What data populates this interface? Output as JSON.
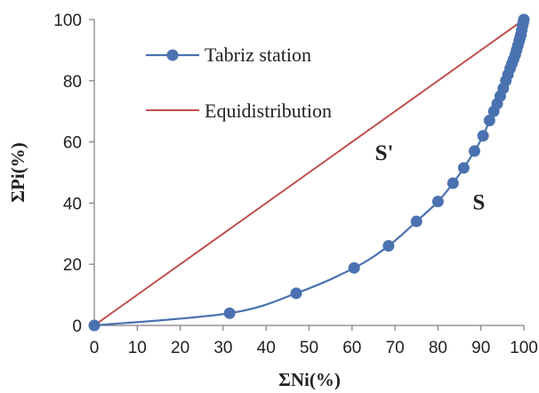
{
  "chart_data": {
    "type": "line",
    "title": "",
    "xlabel": "ΣNi(%)",
    "ylabel": "ΣPi(%)",
    "xlim": [
      0,
      100
    ],
    "ylim": [
      0,
      100
    ],
    "x_ticks": [
      "0",
      "10",
      "20",
      "30",
      "40",
      "50",
      "60",
      "70",
      "80",
      "90",
      "100"
    ],
    "y_ticks": [
      "0",
      "20",
      "40",
      "60",
      "80",
      "100"
    ],
    "grid": false,
    "legend_position": "top-left",
    "series": [
      {
        "name": "Tabriz station",
        "color": "#4a72b0",
        "marker": "circle",
        "x": [
          0,
          31.5,
          47,
          60.5,
          68.5,
          75,
          80,
          83.5,
          86,
          88.5,
          90.5,
          92,
          93,
          93.8,
          94.5,
          95.2,
          95.8,
          96.3,
          96.8,
          97.2,
          97.6,
          98,
          98.3,
          98.6,
          98.9,
          99.1,
          99.3,
          99.5,
          99.7,
          99.85,
          100
        ],
        "y": [
          0,
          4,
          10.5,
          18.8,
          26,
          34,
          40.5,
          46.5,
          51.5,
          57,
          62,
          67,
          70,
          72.5,
          75,
          77.5,
          80,
          82,
          84,
          85.5,
          87,
          88.5,
          90,
          91.5,
          93,
          94,
          95,
          96.5,
          98,
          99,
          100
        ]
      },
      {
        "name": "Equidistribution",
        "color": "#c0504d",
        "marker": "none",
        "x": [
          0,
          100
        ],
        "y": [
          0,
          100
        ]
      }
    ],
    "annotations": [
      {
        "text": "S'",
        "x": 67.5,
        "y": 54
      },
      {
        "text": "S",
        "x": 89.5,
        "y": 38
      }
    ]
  }
}
